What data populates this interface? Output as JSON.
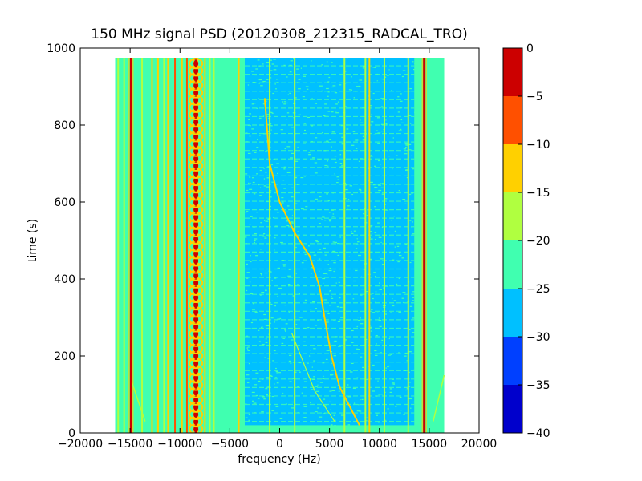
{
  "chart_data": {
    "type": "heatmap",
    "title": "150 MHz signal PSD (20120308_212315_RADCAL_TRO)",
    "xlabel": "frequency (Hz)",
    "ylabel": "time (s)",
    "xlim": [
      -20000,
      20000
    ],
    "ylim": [
      0,
      1000
    ],
    "x_ticks": [
      -20000,
      -15000,
      -10000,
      -5000,
      0,
      5000,
      10000,
      15000,
      20000
    ],
    "x_tick_labels": [
      "−20000",
      "−15000",
      "−10000",
      "−5000",
      "0",
      "5000",
      "10000",
      "15000",
      "20000"
    ],
    "y_ticks": [
      0,
      200,
      400,
      600,
      800,
      1000
    ],
    "y_tick_labels": [
      "0",
      "200",
      "400",
      "600",
      "800",
      "1000"
    ],
    "data_extent": {
      "x": [
        -16500,
        16500
      ],
      "y": [
        0,
        975
      ]
    },
    "background_level": -22.5,
    "noisy_region": {
      "x": [
        -3500,
        13500
      ],
      "y": [
        20,
        975
      ],
      "level": -27.5
    },
    "constant_carriers": [
      {
        "x": -16200,
        "level": -17.5
      },
      {
        "x": -15600,
        "level": -17.5
      },
      {
        "x": -14900,
        "level": -2.5
      },
      {
        "x": -13800,
        "level": -17.5
      },
      {
        "x": -12800,
        "level": -12.5
      },
      {
        "x": -12200,
        "level": -12.5
      },
      {
        "x": -11600,
        "level": -17.5
      },
      {
        "x": -11200,
        "level": -12.5
      },
      {
        "x": -10500,
        "level": -7.5
      },
      {
        "x": -9800,
        "level": -12.5
      },
      {
        "x": -9300,
        "level": -7.5
      },
      {
        "x": -8400,
        "level": -2.5
      },
      {
        "x": -7500,
        "level": -12.5
      },
      {
        "x": -7000,
        "level": -17.5
      },
      {
        "x": -6600,
        "level": -17.5
      },
      {
        "x": -4100,
        "level": -12.5
      },
      {
        "x": -1000,
        "level": -17.5
      },
      {
        "x": 1500,
        "level": -17.5
      },
      {
        "x": 6500,
        "level": -17.5
      },
      {
        "x": 8600,
        "level": -17.5
      },
      {
        "x": 9000,
        "level": -12.5
      },
      {
        "x": 10500,
        "level": -17.5
      },
      {
        "x": 12900,
        "level": -17.5
      },
      {
        "x": 14500,
        "level": -2.5
      }
    ],
    "doppler_trace": {
      "level": -12.5,
      "points": [
        {
          "x": -1500,
          "y": 870
        },
        {
          "x": -1000,
          "y": 700
        },
        {
          "x": 0,
          "y": 600
        },
        {
          "x": 1500,
          "y": 520
        },
        {
          "x": 3000,
          "y": 460
        },
        {
          "x": 4000,
          "y": 380
        },
        {
          "x": 4500,
          "y": 300
        },
        {
          "x": 5200,
          "y": 200
        },
        {
          "x": 6000,
          "y": 120
        },
        {
          "x": 8000,
          "y": 20
        }
      ]
    },
    "colorbar": {
      "label_ticks": [
        0,
        -5,
        -10,
        -15,
        -20,
        -25,
        -30,
        -35,
        -40
      ],
      "label_texts": [
        "0",
        "−5",
        "−10",
        "−15",
        "−20",
        "−25",
        "−30",
        "−35",
        "−40"
      ],
      "levels": [
        {
          "from": -40,
          "to": -35,
          "color": "#0000cc"
        },
        {
          "from": -35,
          "to": -30,
          "color": "#0040ff"
        },
        {
          "from": -30,
          "to": -25,
          "color": "#00c0ff"
        },
        {
          "from": -25,
          "to": -20,
          "color": "#40ffb0"
        },
        {
          "from": -20,
          "to": -15,
          "color": "#b0ff40"
        },
        {
          "from": -15,
          "to": -10,
          "color": "#ffd000"
        },
        {
          "from": -10,
          "to": -5,
          "color": "#ff5000"
        },
        {
          "from": -5,
          "to": 0,
          "color": "#cc0000"
        }
      ]
    },
    "grid": false,
    "legend": "none"
  }
}
